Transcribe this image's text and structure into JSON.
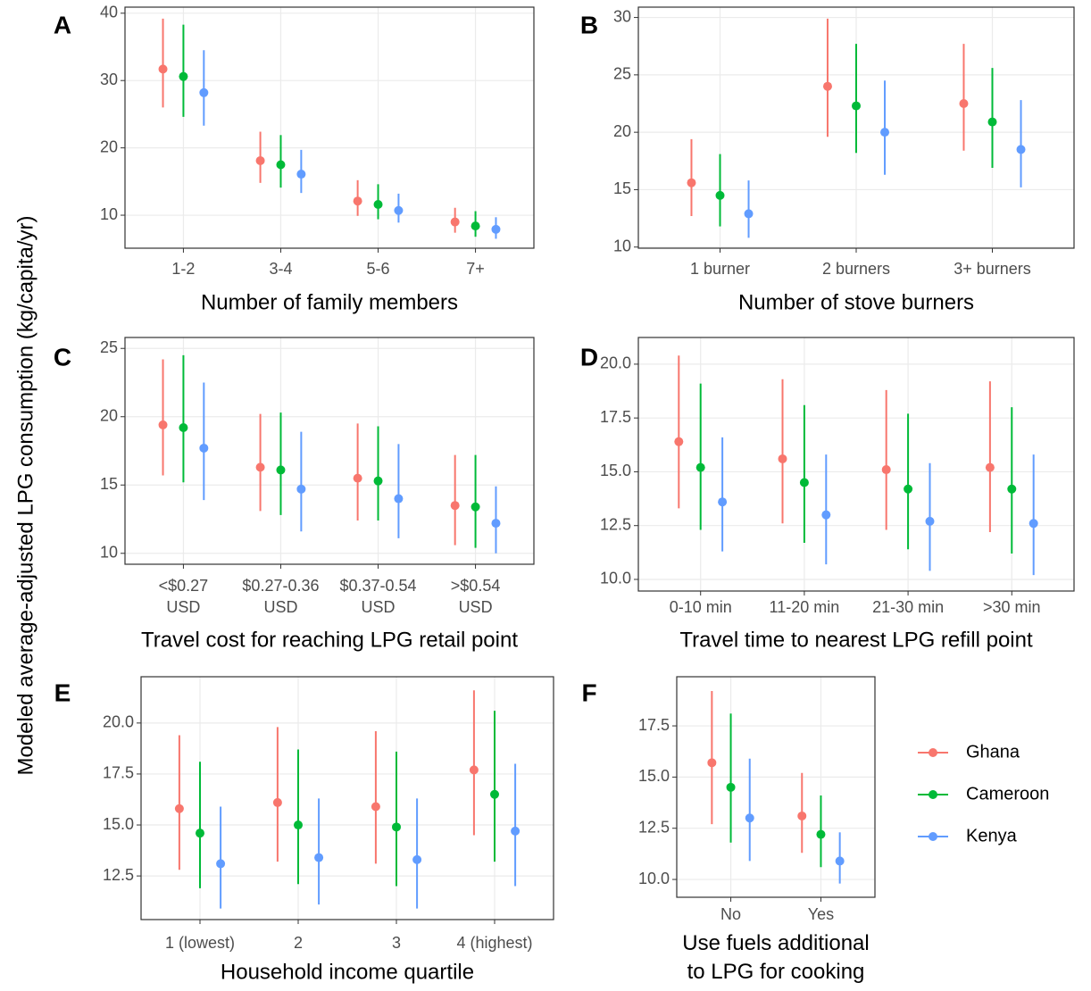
{
  "y_label": "Modeled average-adjusted LPG consumption (kg/capita/yr)",
  "chart_data": [
    {
      "type": "errorbar",
      "panel": "A",
      "x_label": "Number of family members",
      "categories": [
        "1-2",
        "3-4",
        "5-6",
        "7+"
      ],
      "ylim": [
        5.1,
        40.9
      ],
      "yticks": [
        10,
        20,
        30,
        40
      ],
      "grid": true,
      "series": [
        {
          "name": "Ghana",
          "color": "#F8766D",
          "values": [
            31.7,
            18.1,
            12.1,
            9.0
          ],
          "lower": [
            26.0,
            14.8,
            9.9,
            7.4
          ],
          "upper": [
            39.2,
            22.4,
            15.2,
            11.1
          ]
        },
        {
          "name": "Cameroon",
          "color": "#00BA38",
          "values": [
            30.6,
            17.5,
            11.6,
            8.4
          ],
          "lower": [
            24.6,
            14.1,
            9.4,
            6.8
          ],
          "upper": [
            38.3,
            21.9,
            14.6,
            10.6
          ]
        },
        {
          "name": "Kenya",
          "color": "#619CFF",
          "values": [
            28.2,
            16.1,
            10.7,
            7.9
          ],
          "lower": [
            23.3,
            13.3,
            8.9,
            6.5
          ],
          "upper": [
            34.5,
            19.7,
            13.2,
            9.7
          ]
        }
      ]
    },
    {
      "type": "errorbar",
      "panel": "B",
      "x_label": "Number of stove burners",
      "categories": [
        "1 burner",
        "2 burners",
        "3+ burners"
      ],
      "ylim": [
        9.9,
        30.9
      ],
      "yticks": [
        10,
        15,
        20,
        25,
        30
      ],
      "grid": true,
      "series": [
        {
          "name": "Ghana",
          "color": "#F8766D",
          "values": [
            15.6,
            24.0,
            22.5
          ],
          "lower": [
            12.7,
            19.6,
            18.4
          ],
          "upper": [
            19.4,
            29.9,
            27.7
          ]
        },
        {
          "name": "Cameroon",
          "color": "#00BA38",
          "values": [
            14.5,
            22.3,
            20.9
          ],
          "lower": [
            11.8,
            18.2,
            16.9
          ],
          "upper": [
            18.1,
            27.7,
            25.6
          ]
        },
        {
          "name": "Kenya",
          "color": "#619CFF",
          "values": [
            12.9,
            20.0,
            18.5
          ],
          "lower": [
            10.8,
            16.3,
            15.2
          ],
          "upper": [
            15.8,
            24.5,
            22.8
          ]
        }
      ]
    },
    {
      "type": "errorbar",
      "panel": "C",
      "x_label": "Travel cost for reaching LPG retail point",
      "categories": [
        "<$0.27\nUSD",
        "$0.27-0.36\nUSD",
        "$0.37-0.54\nUSD",
        ">$0.54\nUSD"
      ],
      "ylim": [
        9.2,
        25.8
      ],
      "yticks": [
        10,
        15,
        20,
        25
      ],
      "grid": true,
      "series": [
        {
          "name": "Ghana",
          "color": "#F8766D",
          "values": [
            19.4,
            16.3,
            15.5,
            13.5
          ],
          "lower": [
            15.7,
            13.1,
            12.4,
            10.6
          ],
          "upper": [
            24.2,
            20.2,
            19.5,
            17.2
          ]
        },
        {
          "name": "Cameroon",
          "color": "#00BA38",
          "values": [
            19.2,
            16.1,
            15.3,
            13.4
          ],
          "lower": [
            15.2,
            12.8,
            12.4,
            10.4
          ],
          "upper": [
            24.5,
            20.3,
            19.3,
            17.2
          ]
        },
        {
          "name": "Kenya",
          "color": "#619CFF",
          "values": [
            17.7,
            14.7,
            14.0,
            12.2
          ],
          "lower": [
            13.9,
            11.6,
            11.1,
            10.0
          ],
          "upper": [
            22.5,
            18.9,
            18.0,
            14.9
          ]
        }
      ]
    },
    {
      "type": "errorbar",
      "panel": "D",
      "x_label": "Travel time to nearest LPG refill point",
      "categories": [
        "0-10 min",
        "11-20 min",
        "21-30 min",
        ">30 min"
      ],
      "ylim": [
        9.46,
        21.24
      ],
      "yticks": [
        {
          "value": 10,
          "label": "10.0"
        },
        12.5,
        {
          "value": 15,
          "label": "15.0"
        },
        17.5,
        {
          "value": 20,
          "label": "20.0"
        }
      ],
      "grid": true,
      "series": [
        {
          "name": "Ghana",
          "color": "#F8766D",
          "values": [
            16.4,
            15.6,
            15.1,
            15.2
          ],
          "lower": [
            13.3,
            12.6,
            12.3,
            12.2
          ],
          "upper": [
            20.4,
            19.3,
            18.8,
            19.2
          ]
        },
        {
          "name": "Cameroon",
          "color": "#00BA38",
          "values": [
            15.2,
            14.5,
            14.2,
            14.2
          ],
          "lower": [
            12.3,
            11.7,
            11.4,
            11.2
          ],
          "upper": [
            19.1,
            18.1,
            17.7,
            18.0
          ]
        },
        {
          "name": "Kenya",
          "color": "#619CFF",
          "values": [
            13.6,
            13.0,
            12.7,
            12.6
          ],
          "lower": [
            11.3,
            10.7,
            10.4,
            10.2
          ],
          "upper": [
            16.6,
            15.8,
            15.4,
            15.8
          ]
        }
      ]
    },
    {
      "type": "errorbar",
      "panel": "E",
      "x_label": "Household income quartile",
      "categories": [
        "1 (lowest)",
        "2",
        "3",
        "4 (highest)"
      ],
      "ylim": [
        10.36,
        22.27
      ],
      "yticks": [
        12.5,
        {
          "value": 15,
          "label": "15.0"
        },
        17.5,
        {
          "value": 20,
          "label": "20.0"
        }
      ],
      "grid": true,
      "series": [
        {
          "name": "Ghana",
          "color": "#F8766D",
          "values": [
            15.8,
            16.1,
            15.9,
            17.7
          ],
          "lower": [
            12.8,
            13.2,
            13.1,
            14.5
          ],
          "upper": [
            19.4,
            19.8,
            19.6,
            21.6
          ]
        },
        {
          "name": "Cameroon",
          "color": "#00BA38",
          "values": [
            14.6,
            15.0,
            14.9,
            16.5
          ],
          "lower": [
            11.9,
            12.1,
            12.0,
            13.2
          ],
          "upper": [
            18.1,
            18.7,
            18.6,
            20.6
          ]
        },
        {
          "name": "Kenya",
          "color": "#619CFF",
          "values": [
            13.1,
            13.4,
            13.3,
            14.7
          ],
          "lower": [
            10.9,
            11.1,
            10.9,
            12.0
          ],
          "upper": [
            15.9,
            16.3,
            16.3,
            18.0
          ]
        }
      ]
    },
    {
      "type": "errorbar",
      "panel": "F",
      "x_label": "Use fuels additional\nto LPG for cooking",
      "categories": [
        "No",
        "Yes"
      ],
      "ylim": [
        9.13,
        19.9
      ],
      "yticks": [
        {
          "value": 10,
          "label": "10.0"
        },
        12.5,
        {
          "value": 15,
          "label": "15.0"
        },
        17.5
      ],
      "grid": true,
      "series": [
        {
          "name": "Ghana",
          "color": "#F8766D",
          "values": [
            15.7,
            13.1
          ],
          "lower": [
            12.7,
            11.3
          ],
          "upper": [
            19.2,
            15.2
          ]
        },
        {
          "name": "Cameroon",
          "color": "#00BA38",
          "values": [
            14.5,
            12.2
          ],
          "lower": [
            11.8,
            10.6
          ],
          "upper": [
            18.1,
            14.1
          ]
        },
        {
          "name": "Kenya",
          "color": "#619CFF",
          "values": [
            13.0,
            10.9
          ],
          "lower": [
            10.9,
            9.8
          ],
          "upper": [
            15.9,
            12.3
          ]
        }
      ]
    }
  ]
}
